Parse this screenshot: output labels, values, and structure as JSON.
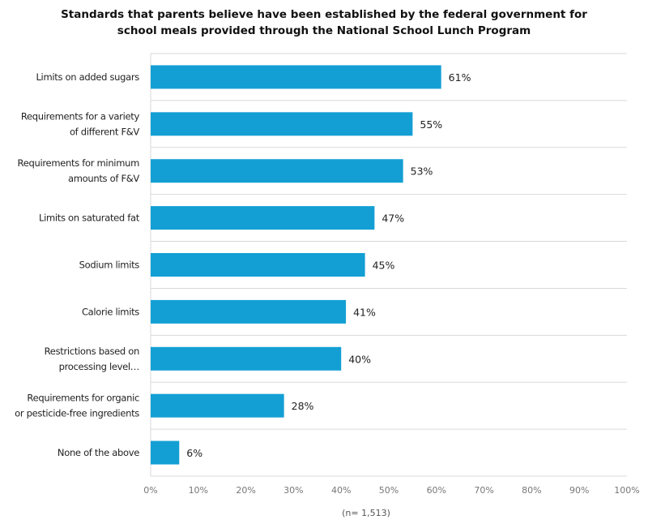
{
  "chart_data": {
    "type": "bar",
    "orientation": "horizontal",
    "title_lines": [
      "Standards that parents believe have been established by the federal government for",
      "school meals provided through the National School Lunch Program"
    ],
    "categories": [
      [
        "Limits on added sugars"
      ],
      [
        "Requirements for a variety",
        "of different F&V"
      ],
      [
        "Requirements for minimum",
        "amounts of F&V"
      ],
      [
        "Limits on saturated fat"
      ],
      [
        "Sodium limits"
      ],
      [
        "Calorie limits"
      ],
      [
        "Restrictions based on",
        "processing level…"
      ],
      [
        "Requirements for organic",
        "or pesticide-free ingredients"
      ],
      [
        "None of the above"
      ]
    ],
    "values": [
      61,
      55,
      53,
      47,
      45,
      41,
      40,
      28,
      6
    ],
    "data_labels": [
      "61%",
      "55%",
      "53%",
      "47%",
      "45%",
      "41%",
      "40%",
      "28%",
      "6%"
    ],
    "xlim": [
      0,
      100
    ],
    "x_ticks": [
      "0%",
      "10%",
      "20%",
      "30%",
      "40%",
      "50%",
      "60%",
      "70%",
      "80%",
      "90%",
      "100%"
    ],
    "note": "(n= 1,513)",
    "grid": true,
    "bar_color": "#139fd4",
    "grid_color": "#d9d9d9"
  }
}
